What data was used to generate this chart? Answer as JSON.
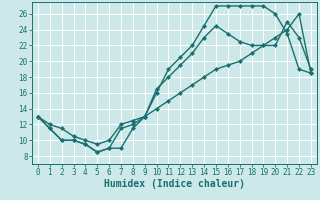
{
  "background_color": "#cce8e8",
  "grid_color": "#ffffff",
  "line_color": "#1a7070",
  "marker": "D",
  "marker_size": 2.5,
  "line_width": 1.0,
  "xlabel": "Humidex (Indice chaleur)",
  "xlabel_fontsize": 7,
  "tick_fontsize": 5.5,
  "xlim": [
    -0.5,
    23.5
  ],
  "ylim": [
    7.0,
    27.5
  ],
  "yticks": [
    8,
    10,
    12,
    14,
    16,
    18,
    20,
    22,
    24,
    26
  ],
  "xticks": [
    0,
    1,
    2,
    3,
    4,
    5,
    6,
    7,
    8,
    9,
    10,
    11,
    12,
    13,
    14,
    15,
    16,
    17,
    18,
    19,
    20,
    21,
    22,
    23
  ],
  "line1_x": [
    0,
    1,
    2,
    3,
    4,
    5,
    6,
    7,
    8,
    9,
    10,
    11,
    12,
    13,
    14,
    15,
    16,
    17,
    18,
    19,
    20,
    21,
    22,
    23
  ],
  "line1_y": [
    13,
    11.5,
    10,
    10,
    9.5,
    8.5,
    9.0,
    11.5,
    12,
    13,
    16,
    19,
    20.5,
    22,
    24.5,
    27,
    27,
    27,
    27,
    27,
    26,
    23.5,
    19,
    18.5
  ],
  "line2_x": [
    0,
    1,
    2,
    3,
    4,
    5,
    6,
    7,
    8,
    9,
    10,
    11,
    12,
    13,
    14,
    15,
    16,
    17,
    18,
    19,
    20,
    21,
    22,
    23
  ],
  "line2_y": [
    13,
    11.5,
    10,
    10,
    9.5,
    8.5,
    9.0,
    9.0,
    11.5,
    13,
    16.5,
    18,
    19.5,
    21,
    23,
    24.5,
    23.5,
    22.5,
    22,
    22,
    22,
    25,
    23,
    19
  ],
  "line3_x": [
    0,
    1,
    2,
    3,
    4,
    5,
    6,
    7,
    8,
    9,
    10,
    11,
    12,
    13,
    14,
    15,
    16,
    17,
    18,
    19,
    20,
    21,
    22,
    23
  ],
  "line3_y": [
    13,
    12,
    11.5,
    10.5,
    10,
    9.5,
    10,
    12,
    12.5,
    13,
    14,
    15,
    16,
    17,
    18,
    19,
    19.5,
    20,
    21,
    22,
    23,
    24,
    26,
    18.5
  ]
}
